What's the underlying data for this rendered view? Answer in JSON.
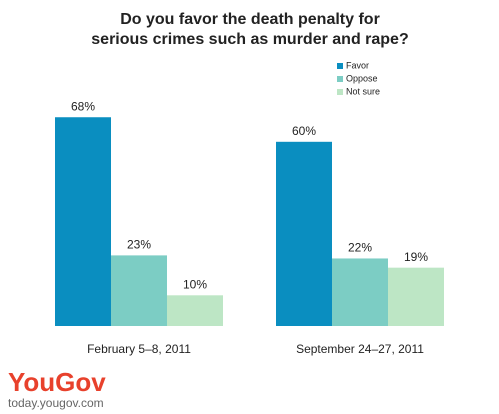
{
  "chart_data": {
    "type": "bar",
    "title": "Do you favor the death penalty for serious crimes such as murder and rape?",
    "categories": [
      "February 5–8, 2011",
      "September 24–27, 2011"
    ],
    "series": [
      {
        "name": "Favor",
        "color": "#0a8ec0",
        "values": [
          68,
          60
        ],
        "value_labels": [
          "68%",
          "60%"
        ]
      },
      {
        "name": "Oppose",
        "color": "#7ccdc4",
        "values": [
          23,
          22
        ],
        "value_labels": [
          "23%",
          "22%"
        ]
      },
      {
        "name": "Not sure",
        "color": "#bde6c5",
        "values": [
          10,
          19
        ],
        "value_labels": [
          "10%",
          "19%"
        ]
      }
    ],
    "legend": "top-right",
    "logo": "YouGov",
    "website": "today.yougov.com"
  }
}
